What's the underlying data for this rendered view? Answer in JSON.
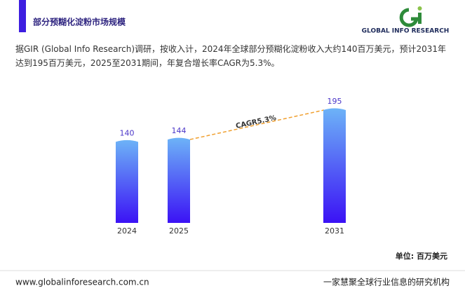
{
  "header": {
    "title": "部分预糊化淀粉市场规模",
    "logo": "GLOBAL INFO RESEARCH"
  },
  "description": "据GIR (Global Info Research)调研，按收入计，2024年全球部分预糊化淀粉收入大约140百万美元，预计2031年达到195百万美元，2025至2031期间，年复合增长率CAGR为5.3%。",
  "chart_data": {
    "type": "bar",
    "categories": [
      "2024",
      "2025",
      "2031"
    ],
    "values": [
      140,
      144,
      195
    ],
    "annotation": "CAGR5.3%",
    "unit_label": "单位: 百万美元"
  },
  "footer": {
    "url": "www.globalinforesearch.com.cn",
    "slogan": "一家慧聚全球行业信息的研究机构"
  }
}
